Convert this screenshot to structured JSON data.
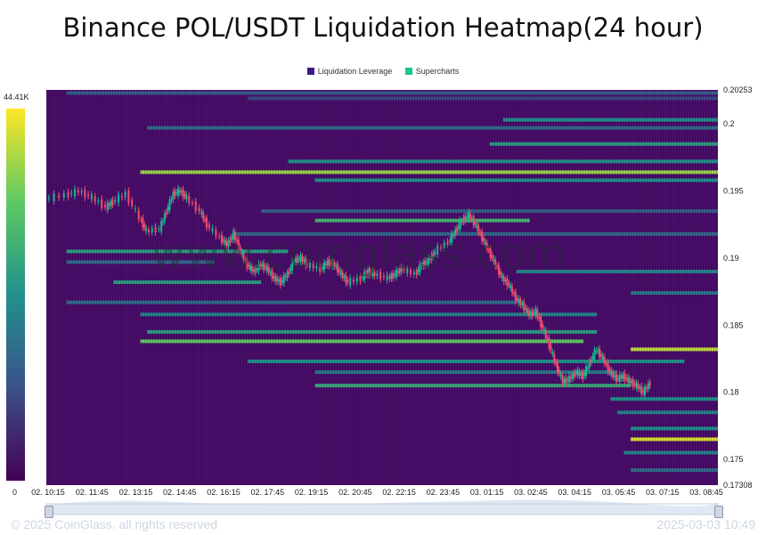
{
  "title": "Binance POL/USDT Liquidation Heatmap(24 hour)",
  "legend": [
    {
      "label": "Liquidation Leverage",
      "color": "#3b1a8a"
    },
    {
      "label": "Supercharts",
      "color": "#19c98a"
    }
  ],
  "colorbar": {
    "max_label": "44.41K",
    "min_label": "0"
  },
  "watermark": "www.coinglass.com",
  "footer": {
    "left": "© 2025 CoinGlass. all rights reserved",
    "right": "2025-03-03 10:49"
  },
  "chart_data": {
    "type": "heatmap",
    "title": "Binance POL/USDT Liquidation Heatmap(24 hour)",
    "x_ticks": [
      "02. 10:15",
      "02. 11:45",
      "02. 13:15",
      "02. 14:45",
      "02. 16:15",
      "02. 17:45",
      "02. 19:15",
      "02. 20:45",
      "02. 22:15",
      "02. 23:45",
      "03. 01:15",
      "03. 02:45",
      "03. 04:15",
      "03. 05:45",
      "03. 07:15",
      "03. 08:45"
    ],
    "y_ticks": [
      0.20253,
      0.2,
      0.195,
      0.19,
      0.185,
      0.18,
      0.175,
      0.17308
    ],
    "ylim": [
      0.17308,
      0.20253
    ],
    "colorbar_range": [
      0,
      44410
    ],
    "price_series": [
      [
        0,
        0.1944
      ],
      [
        0.03,
        0.1947
      ],
      [
        0.05,
        0.195
      ],
      [
        0.07,
        0.1945
      ],
      [
        0.09,
        0.1938
      ],
      [
        0.1,
        0.1942
      ],
      [
        0.12,
        0.1948
      ],
      [
        0.14,
        0.193
      ],
      [
        0.15,
        0.192
      ],
      [
        0.17,
        0.1922
      ],
      [
        0.18,
        0.1935
      ],
      [
        0.19,
        0.1948
      ],
      [
        0.2,
        0.195
      ],
      [
        0.21,
        0.1945
      ],
      [
        0.23,
        0.1935
      ],
      [
        0.24,
        0.1925
      ],
      [
        0.26,
        0.1915
      ],
      [
        0.27,
        0.191
      ],
      [
        0.28,
        0.1918
      ],
      [
        0.29,
        0.1905
      ],
      [
        0.3,
        0.1895
      ],
      [
        0.31,
        0.189
      ],
      [
        0.32,
        0.1895
      ],
      [
        0.33,
        0.1892
      ],
      [
        0.34,
        0.1885
      ],
      [
        0.35,
        0.1882
      ],
      [
        0.36,
        0.1888
      ],
      [
        0.37,
        0.1898
      ],
      [
        0.38,
        0.19
      ],
      [
        0.39,
        0.1895
      ],
      [
        0.41,
        0.1892
      ],
      [
        0.42,
        0.1897
      ],
      [
        0.43,
        0.1895
      ],
      [
        0.44,
        0.1888
      ],
      [
        0.45,
        0.1882
      ],
      [
        0.47,
        0.1885
      ],
      [
        0.48,
        0.189
      ],
      [
        0.49,
        0.1888
      ],
      [
        0.51,
        0.1885
      ],
      [
        0.52,
        0.1888
      ],
      [
        0.53,
        0.1892
      ],
      [
        0.55,
        0.1888
      ],
      [
        0.56,
        0.1895
      ],
      [
        0.57,
        0.1898
      ],
      [
        0.58,
        0.1905
      ],
      [
        0.6,
        0.1912
      ],
      [
        0.61,
        0.192
      ],
      [
        0.62,
        0.1928
      ],
      [
        0.63,
        0.1932
      ],
      [
        0.64,
        0.1925
      ],
      [
        0.65,
        0.1915
      ],
      [
        0.66,
        0.1905
      ],
      [
        0.67,
        0.1895
      ],
      [
        0.68,
        0.1885
      ],
      [
        0.69,
        0.188
      ],
      [
        0.7,
        0.187
      ],
      [
        0.71,
        0.1865
      ],
      [
        0.72,
        0.1858
      ],
      [
        0.73,
        0.186
      ],
      [
        0.74,
        0.1848
      ],
      [
        0.75,
        0.1835
      ],
      [
        0.76,
        0.182
      ],
      [
        0.77,
        0.1808
      ],
      [
        0.78,
        0.181
      ],
      [
        0.79,
        0.1815
      ],
      [
        0.8,
        0.1812
      ],
      [
        0.81,
        0.1822
      ],
      [
        0.82,
        0.1832
      ],
      [
        0.83,
        0.1825
      ],
      [
        0.84,
        0.1815
      ],
      [
        0.85,
        0.181
      ],
      [
        0.86,
        0.1812
      ],
      [
        0.87,
        0.1808
      ],
      [
        0.88,
        0.1805
      ],
      [
        0.89,
        0.18
      ],
      [
        0.9,
        0.1807
      ]
    ],
    "liquidation_bands": [
      {
        "y": 0.2023,
        "x0": 0.03,
        "x1": 1.0,
        "level": 0.3
      },
      {
        "y": 0.2019,
        "x0": 0.3,
        "x1": 1.0,
        "level": 0.22
      },
      {
        "y": 0.2003,
        "x0": 0.68,
        "x1": 1.0,
        "level": 0.5
      },
      {
        "y": 0.1997,
        "x0": 0.15,
        "x1": 1.0,
        "level": 0.35
      },
      {
        "y": 0.1985,
        "x0": 0.66,
        "x1": 1.0,
        "level": 0.55
      },
      {
        "y": 0.1972,
        "x0": 0.36,
        "x1": 1.0,
        "level": 0.5
      },
      {
        "y": 0.1964,
        "x0": 0.14,
        "x1": 1.0,
        "level": 0.85
      },
      {
        "y": 0.1958,
        "x0": 0.4,
        "x1": 1.0,
        "level": 0.5
      },
      {
        "y": 0.1935,
        "x0": 0.32,
        "x1": 1.0,
        "level": 0.3
      },
      {
        "y": 0.1928,
        "x0": 0.4,
        "x1": 0.72,
        "level": 0.65
      },
      {
        "y": 0.1918,
        "x0": 0.28,
        "x1": 1.0,
        "level": 0.35
      },
      {
        "y": 0.1905,
        "x0": 0.03,
        "x1": 0.36,
        "level": 0.55
      },
      {
        "y": 0.1897,
        "x0": 0.03,
        "x1": 0.25,
        "level": 0.35
      },
      {
        "y": 0.189,
        "x0": 0.7,
        "x1": 1.0,
        "level": 0.45
      },
      {
        "y": 0.1882,
        "x0": 0.1,
        "x1": 0.32,
        "level": 0.55
      },
      {
        "y": 0.1874,
        "x0": 0.87,
        "x1": 1.0,
        "level": 0.4
      },
      {
        "y": 0.1867,
        "x0": 0.03,
        "x1": 0.7,
        "level": 0.35
      },
      {
        "y": 0.1858,
        "x0": 0.14,
        "x1": 0.82,
        "level": 0.45
      },
      {
        "y": 0.1845,
        "x0": 0.15,
        "x1": 0.82,
        "level": 0.55
      },
      {
        "y": 0.1838,
        "x0": 0.14,
        "x1": 0.8,
        "level": 0.75
      },
      {
        "y": 0.1832,
        "x0": 0.87,
        "x1": 1.0,
        "level": 0.9
      },
      {
        "y": 0.1823,
        "x0": 0.3,
        "x1": 0.95,
        "level": 0.5
      },
      {
        "y": 0.1815,
        "x0": 0.4,
        "x1": 0.85,
        "level": 0.4
      },
      {
        "y": 0.1805,
        "x0": 0.4,
        "x1": 0.87,
        "level": 0.6
      },
      {
        "y": 0.1795,
        "x0": 0.84,
        "x1": 1.0,
        "level": 0.5
      },
      {
        "y": 0.1785,
        "x0": 0.85,
        "x1": 1.0,
        "level": 0.45
      },
      {
        "y": 0.1773,
        "x0": 0.87,
        "x1": 1.0,
        "level": 0.5
      },
      {
        "y": 0.1765,
        "x0": 0.87,
        "x1": 1.0,
        "level": 0.95
      },
      {
        "y": 0.1755,
        "x0": 0.86,
        "x1": 1.0,
        "level": 0.45
      },
      {
        "y": 0.1742,
        "x0": 0.87,
        "x1": 1.0,
        "level": 0.35
      }
    ]
  }
}
